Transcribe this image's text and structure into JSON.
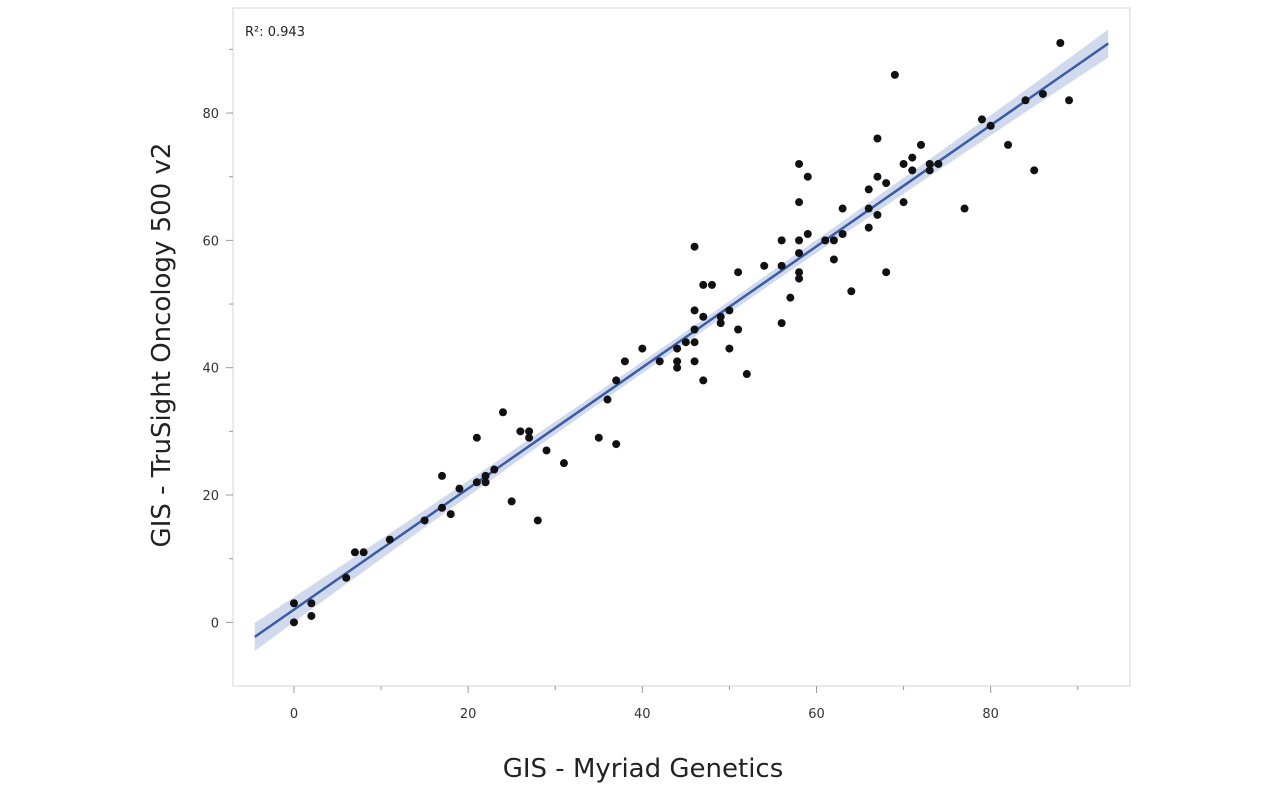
{
  "chart_data": {
    "type": "scatter",
    "title": "",
    "xlabel": "GIS - Myriad Genetics",
    "ylabel": "GIS - TruSight Oncology 500 v2",
    "annotation": "R²: 0.943",
    "xlim": [
      -7,
      96
    ],
    "ylim": [
      -10,
      96.5
    ],
    "xticks": [
      0,
      20,
      40,
      60,
      80
    ],
    "yticks": [
      0,
      20,
      40,
      60,
      80
    ],
    "grid": false,
    "colors": {
      "points": "#111111",
      "line": "#3a5ba8",
      "band": "#c9d3ea",
      "frame": "#d4d4d4"
    },
    "regression": {
      "slope": 0.951,
      "intercept": 2.0,
      "x_range": [
        -4.5,
        93.5
      ],
      "ci_halfwidth_ends": 2.2,
      "ci_halfwidth_mid": 0.9
    },
    "points": [
      [
        0,
        3
      ],
      [
        0,
        0
      ],
      [
        2,
        3
      ],
      [
        2,
        1
      ],
      [
        6,
        7
      ],
      [
        7,
        11
      ],
      [
        8,
        11
      ],
      [
        11,
        13
      ],
      [
        15,
        16
      ],
      [
        17,
        18
      ],
      [
        17,
        23
      ],
      [
        18,
        17
      ],
      [
        19,
        21
      ],
      [
        21,
        22
      ],
      [
        21,
        29
      ],
      [
        22,
        23
      ],
      [
        22,
        22
      ],
      [
        23,
        24
      ],
      [
        24,
        33
      ],
      [
        25,
        19
      ],
      [
        26,
        30
      ],
      [
        27,
        30
      ],
      [
        27,
        29
      ],
      [
        28,
        16
      ],
      [
        29,
        27
      ],
      [
        31,
        25
      ],
      [
        35,
        29
      ],
      [
        36,
        35
      ],
      [
        37,
        38
      ],
      [
        37,
        28
      ],
      [
        38,
        41
      ],
      [
        40,
        43
      ],
      [
        42,
        41
      ],
      [
        44,
        43
      ],
      [
        44,
        41
      ],
      [
        44,
        40
      ],
      [
        45,
        44
      ],
      [
        46,
        59
      ],
      [
        46,
        49
      ],
      [
        46,
        46
      ],
      [
        46,
        44
      ],
      [
        46,
        41
      ],
      [
        47,
        53
      ],
      [
        47,
        48
      ],
      [
        47,
        38
      ],
      [
        48,
        53
      ],
      [
        49,
        48
      ],
      [
        49,
        47
      ],
      [
        50,
        49
      ],
      [
        50,
        43
      ],
      [
        51,
        55
      ],
      [
        51,
        46
      ],
      [
        52,
        39
      ],
      [
        54,
        56
      ],
      [
        56,
        60
      ],
      [
        56,
        56
      ],
      [
        56,
        47
      ],
      [
        57,
        51
      ],
      [
        58,
        72
      ],
      [
        58,
        66
      ],
      [
        58,
        60
      ],
      [
        58,
        58
      ],
      [
        58,
        55
      ],
      [
        58,
        54
      ],
      [
        59,
        70
      ],
      [
        59,
        61
      ],
      [
        61,
        60
      ],
      [
        62,
        60
      ],
      [
        62,
        57
      ],
      [
        63,
        65
      ],
      [
        63,
        61
      ],
      [
        64,
        52
      ],
      [
        66,
        68
      ],
      [
        66,
        65
      ],
      [
        66,
        62
      ],
      [
        67,
        76
      ],
      [
        67,
        70
      ],
      [
        67,
        64
      ],
      [
        68,
        69
      ],
      [
        68,
        55
      ],
      [
        69,
        86
      ],
      [
        70,
        72
      ],
      [
        70,
        66
      ],
      [
        71,
        73
      ],
      [
        71,
        71
      ],
      [
        72,
        75
      ],
      [
        73,
        72
      ],
      [
        73,
        71
      ],
      [
        74,
        72
      ],
      [
        77,
        65
      ],
      [
        79,
        79
      ],
      [
        80,
        78
      ],
      [
        82,
        75
      ],
      [
        84,
        82
      ],
      [
        85,
        71
      ],
      [
        86,
        83
      ],
      [
        88,
        91
      ],
      [
        89,
        82
      ]
    ]
  }
}
